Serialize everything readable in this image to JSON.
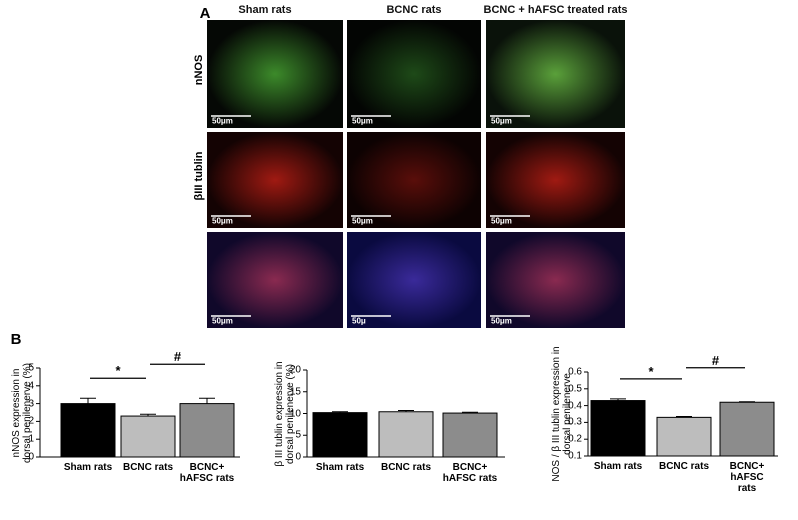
{
  "panel_a": {
    "label": "A",
    "columns": [
      "Sham rats",
      "BCNC rats",
      "BCNC + hAFSC treated rats"
    ],
    "rows": [
      "nNOS",
      "βIII tublin"
    ],
    "scale_bars": [
      "50μm",
      "50μm",
      "50μm",
      "50μm",
      "50μm",
      "50μm",
      "50μm",
      "50μ",
      "50μm"
    ]
  },
  "panel_b_label": "B",
  "chart_data": [
    {
      "type": "bar",
      "y_label": "nNOS expression in\ndorsal penilenerve (%)",
      "categories": [
        "Sham rats",
        "BCNC rats",
        "BCNC+\nhAFSC rats"
      ],
      "values": [
        3.0,
        2.3,
        3.0
      ],
      "errors": [
        0.3,
        0.1,
        0.3
      ],
      "colors": [
        "#000000",
        "#bdbdbd",
        "#8c8c8c"
      ],
      "ylim": [
        0,
        5
      ],
      "yticks": [
        0,
        1,
        2,
        3,
        4,
        5
      ],
      "annotations": [
        "*",
        "#"
      ]
    },
    {
      "type": "bar",
      "y_label": "β III tublin expression in\ndorsal penilenerve (%)",
      "categories": [
        "Sham rats",
        "BCNC rats",
        "BCNC+\nhAFSC rats"
      ],
      "values": [
        10.2,
        10.4,
        10.1
      ],
      "errors": [
        0.2,
        0.3,
        0.2
      ],
      "colors": [
        "#000000",
        "#bdbdbd",
        "#8c8c8c"
      ],
      "ylim": [
        0,
        20
      ],
      "yticks": [
        0,
        5,
        10,
        15,
        20
      ]
    },
    {
      "type": "bar",
      "y_label": "NOS / β III tublin expression in\ndorsal penilenerve",
      "categories": [
        "Sham rats",
        "BCNC rats",
        "BCNC+\nhAFSC rats"
      ],
      "values": [
        0.43,
        0.33,
        0.42
      ],
      "errors": [
        0.01,
        0.005,
        0.003
      ],
      "colors": [
        "#000000",
        "#bdbdbd",
        "#8c8c8c"
      ],
      "ylim": [
        0.1,
        0.6
      ],
      "yticks": [
        0.1,
        0.2,
        0.3,
        0.4,
        0.5,
        0.6
      ],
      "annotations": [
        "*",
        "#"
      ]
    }
  ]
}
